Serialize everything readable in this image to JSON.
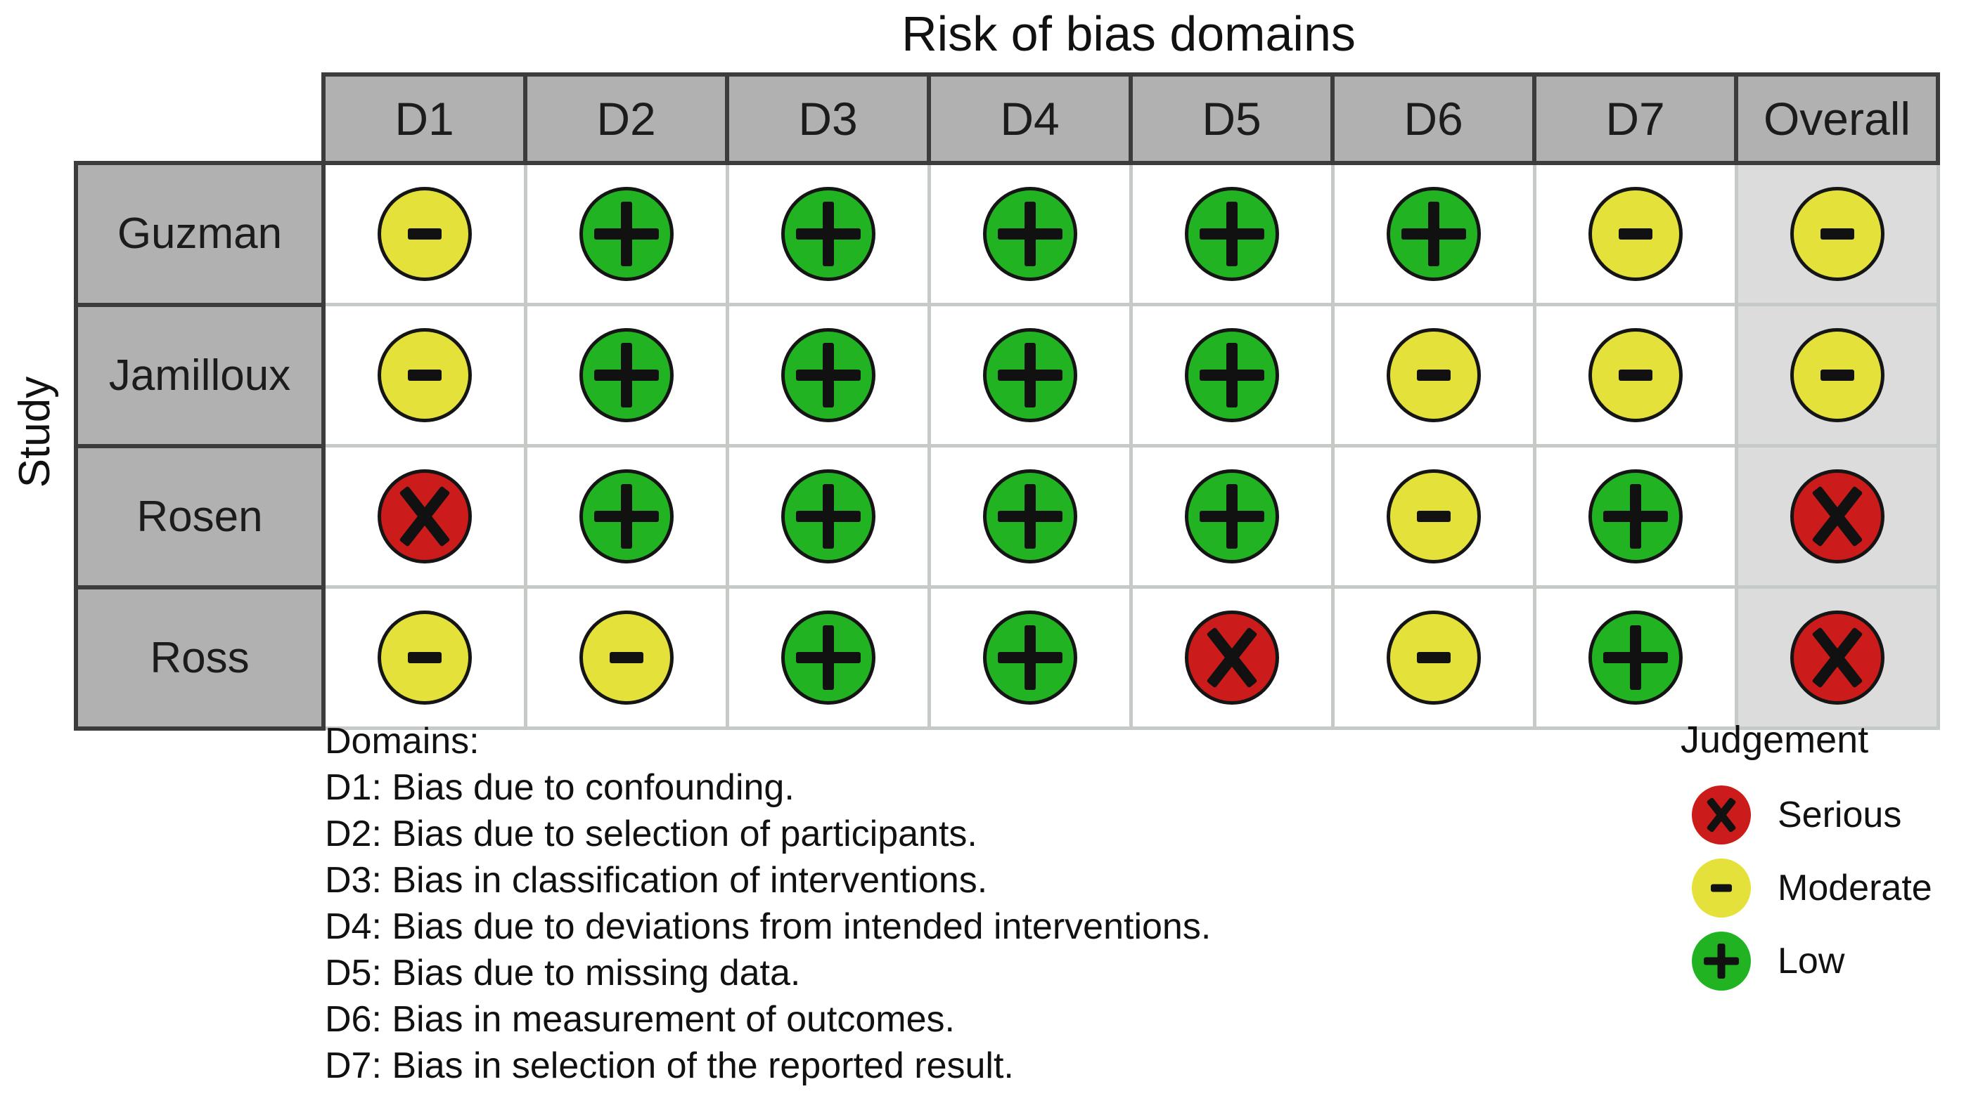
{
  "title": "Risk of bias domains",
  "row_axis_label": "Study",
  "columns": [
    "D1",
    "D2",
    "D3",
    "D4",
    "D5",
    "D6",
    "D7",
    "Overall"
  ],
  "rows": [
    {
      "study": "Guzman",
      "judgements": [
        "moderate",
        "low",
        "low",
        "low",
        "low",
        "low",
        "moderate",
        "moderate"
      ]
    },
    {
      "study": "Jamilloux",
      "judgements": [
        "moderate",
        "low",
        "low",
        "low",
        "low",
        "moderate",
        "moderate",
        "moderate"
      ]
    },
    {
      "study": "Rosen",
      "judgements": [
        "serious",
        "low",
        "low",
        "low",
        "low",
        "moderate",
        "low",
        "serious"
      ]
    },
    {
      "study": "Ross",
      "judgements": [
        "moderate",
        "moderate",
        "low",
        "low",
        "serious",
        "moderate",
        "low",
        "serious"
      ]
    }
  ],
  "judgement_styles": {
    "serious": {
      "color": "#cb1b1b",
      "symbol": "x"
    },
    "moderate": {
      "color": "#e4e13b",
      "symbol": "minus"
    },
    "low": {
      "color": "#22b322",
      "symbol": "plus"
    }
  },
  "domains_note": {
    "heading": "Domains:",
    "items": [
      "D1: Bias due to confounding.",
      "D2: Bias due to selection of participants.",
      "D3: Bias in classification of interventions.",
      "D4: Bias due to deviations from intended interventions.",
      "D5: Bias due to missing data.",
      "D6: Bias in measurement of outcomes.",
      "D7: Bias in selection of the reported result."
    ]
  },
  "legend": {
    "title": "Judgement",
    "items": [
      {
        "label": "Serious",
        "symbol": "x",
        "color": "#cb1b1b"
      },
      {
        "label": "Moderate",
        "symbol": "minus",
        "color": "#e4e13b"
      },
      {
        "label": "Low",
        "symbol": "plus",
        "color": "#22b322"
      }
    ]
  },
  "colors": {
    "header_bg": "#b1b1b1",
    "header_border": "#3c3c3c",
    "overall_cell_bg": "#dcdcdc",
    "grid_line": "#c6cac6",
    "serious": "#cb1b1b",
    "moderate": "#e4e13b",
    "low": "#22b322"
  },
  "chart_data": {
    "type": "table",
    "title": "Risk of bias domains",
    "y_axis_label": "Study",
    "x_categories": [
      "D1",
      "D2",
      "D3",
      "D4",
      "D5",
      "D6",
      "D7",
      "Overall"
    ],
    "y_categories": [
      "Guzman",
      "Jamilloux",
      "Rosen",
      "Ross"
    ],
    "values": [
      [
        "moderate",
        "low",
        "low",
        "low",
        "low",
        "low",
        "moderate",
        "moderate"
      ],
      [
        "moderate",
        "low",
        "low",
        "low",
        "low",
        "moderate",
        "moderate",
        "moderate"
      ],
      [
        "serious",
        "low",
        "low",
        "low",
        "low",
        "moderate",
        "low",
        "serious"
      ],
      [
        "moderate",
        "moderate",
        "low",
        "low",
        "serious",
        "moderate",
        "low",
        "serious"
      ]
    ],
    "legend_title": "Judgement",
    "legend_entries": [
      {
        "label": "Serious",
        "glyph": "x",
        "color": "#cb1b1b"
      },
      {
        "label": "Moderate",
        "glyph": "-",
        "color": "#e4e13b"
      },
      {
        "label": "Low",
        "glyph": "+",
        "color": "#22b322"
      }
    ],
    "legend_position": "bottom-right",
    "grid": true
  }
}
